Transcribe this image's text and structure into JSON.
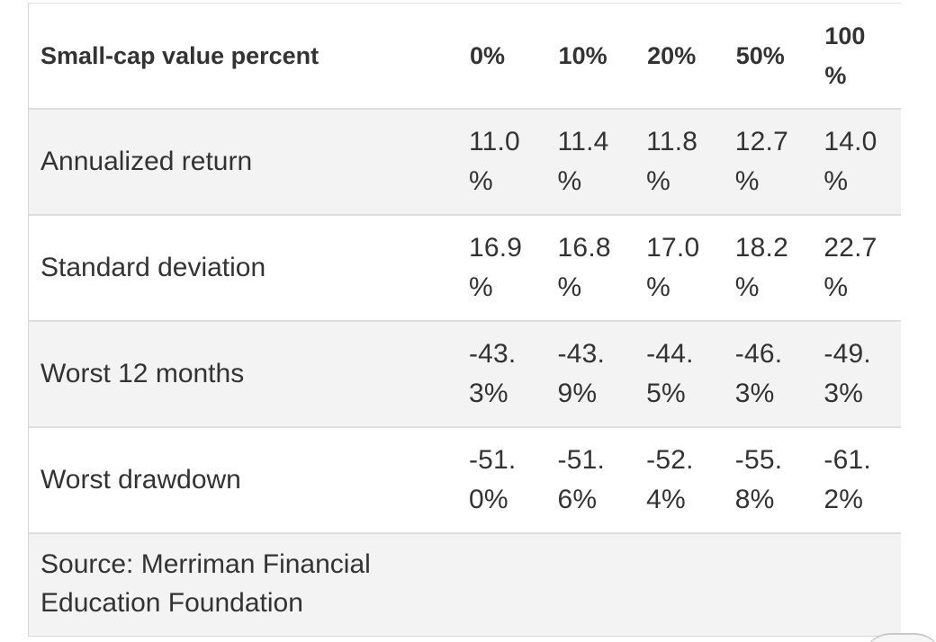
{
  "table": {
    "header": {
      "label": "Small-cap value percent",
      "columns": [
        "0%",
        "10%",
        "20%",
        "50%",
        "100\n%"
      ]
    },
    "rows": [
      {
        "label": "Annualized return",
        "values": [
          "11.0\n%",
          "11.4\n%",
          "11.8\n%",
          "12.7\n%",
          "14.0\n%"
        ]
      },
      {
        "label": "Standard deviation",
        "values": [
          "16.9\n%",
          "16.8\n%",
          "17.0\n%",
          "18.2\n%",
          "22.7\n%"
        ]
      },
      {
        "label": "Worst 12 months",
        "values": [
          "-43.\n3%",
          "-43.\n9%",
          "-44.\n5%",
          "-46.\n3%",
          "-49.\n3%"
        ]
      },
      {
        "label": "Worst drawdown",
        "values": [
          "-51.\n0%",
          "-51.\n6%",
          "-52.\n4%",
          "-55.\n8%",
          "-61.\n2%"
        ]
      }
    ],
    "source": "Source: Merriman Financial Education Foundation"
  }
}
